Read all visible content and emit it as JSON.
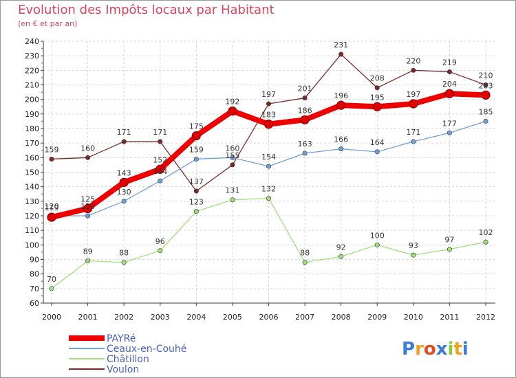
{
  "chart_data": {
    "type": "line",
    "title": "Evolution des Impôts locaux par Habitant",
    "subtitle": "(en € et par an)",
    "x": [
      2000,
      2001,
      2002,
      2003,
      2004,
      2005,
      2006,
      2007,
      2008,
      2009,
      2010,
      2011,
      2012
    ],
    "ylim": [
      60,
      240
    ],
    "yticks": [
      60,
      70,
      80,
      90,
      100,
      110,
      120,
      130,
      140,
      150,
      160,
      170,
      180,
      190,
      200,
      210,
      220,
      230,
      240
    ],
    "grid": true,
    "series": [
      {
        "name": "Voulon",
        "color": "#7b2a2a",
        "values": [
          159,
          160,
          171,
          171,
          137,
          155,
          197,
          201,
          231,
          208,
          220,
          219,
          210
        ]
      },
      {
        "name": "Châtillon",
        "color": "#9fe07a",
        "values": [
          70,
          89,
          88,
          96,
          123,
          131,
          132,
          88,
          92,
          100,
          93,
          97,
          102
        ]
      },
      {
        "name": "Ceaux-en-Couhé",
        "color": "#6fa0d8",
        "values": [
          120,
          120,
          130,
          144,
          159,
          160,
          154,
          163,
          166,
          164,
          171,
          177,
          185
        ]
      },
      {
        "name": "PAYRé",
        "color": "#ee0000",
        "values": [
          119,
          125,
          143,
          152,
          175,
          192,
          183,
          186,
          196,
          195,
          197,
          204,
          203
        ]
      }
    ],
    "legend": [
      "PAYRé",
      "Ceaux-en-Couhé",
      "Châtillon",
      "Voulon"
    ]
  },
  "brand": {
    "text": "Proxiti",
    "letters": [
      "P",
      "r",
      "o",
      "x",
      "i",
      "t",
      "i"
    ],
    "colors": [
      "#3b7dd8",
      "#f0a020",
      "#e05020",
      "#3b7dd8",
      "#8acb3c",
      "#f0a020",
      "#3b7dd8"
    ]
  }
}
